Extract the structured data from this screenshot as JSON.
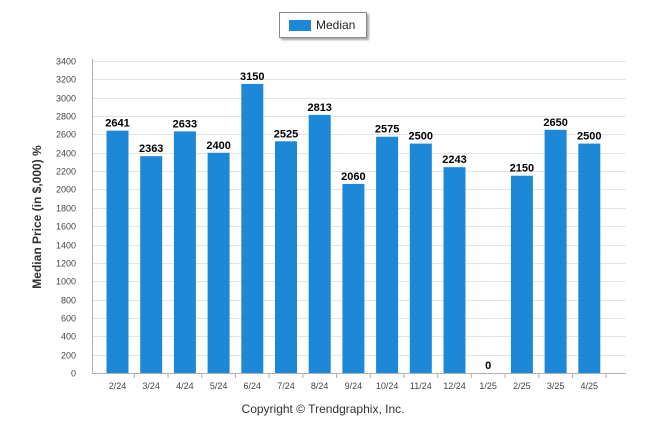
{
  "legend": {
    "label": "Median",
    "color": "#1e88d8"
  },
  "copyright": "Copyright © Trendgraphix, Inc.",
  "chart_data": {
    "type": "bar",
    "ylabel": "Median Price (in $,000) %",
    "ylim": [
      0,
      3400
    ],
    "yticks": [
      0,
      200,
      400,
      600,
      800,
      1000,
      1200,
      1400,
      1600,
      1800,
      2000,
      2200,
      2400,
      2600,
      2800,
      3000,
      3200,
      3400
    ],
    "categories": [
      "2/24",
      "3/24",
      "4/24",
      "5/24",
      "6/24",
      "7/24",
      "8/24",
      "9/24",
      "10/24",
      "11/24",
      "12/24",
      "1/25",
      "2/25",
      "3/25",
      "4/25"
    ],
    "series": [
      {
        "name": "Median",
        "color": "#1e88d8",
        "values": [
          2641,
          2363,
          2633,
          2400,
          3150,
          2525,
          2813,
          2060,
          2575,
          2500,
          2243,
          0,
          2150,
          2650,
          2500
        ]
      }
    ],
    "grid": true,
    "legend_position": "top-center"
  }
}
